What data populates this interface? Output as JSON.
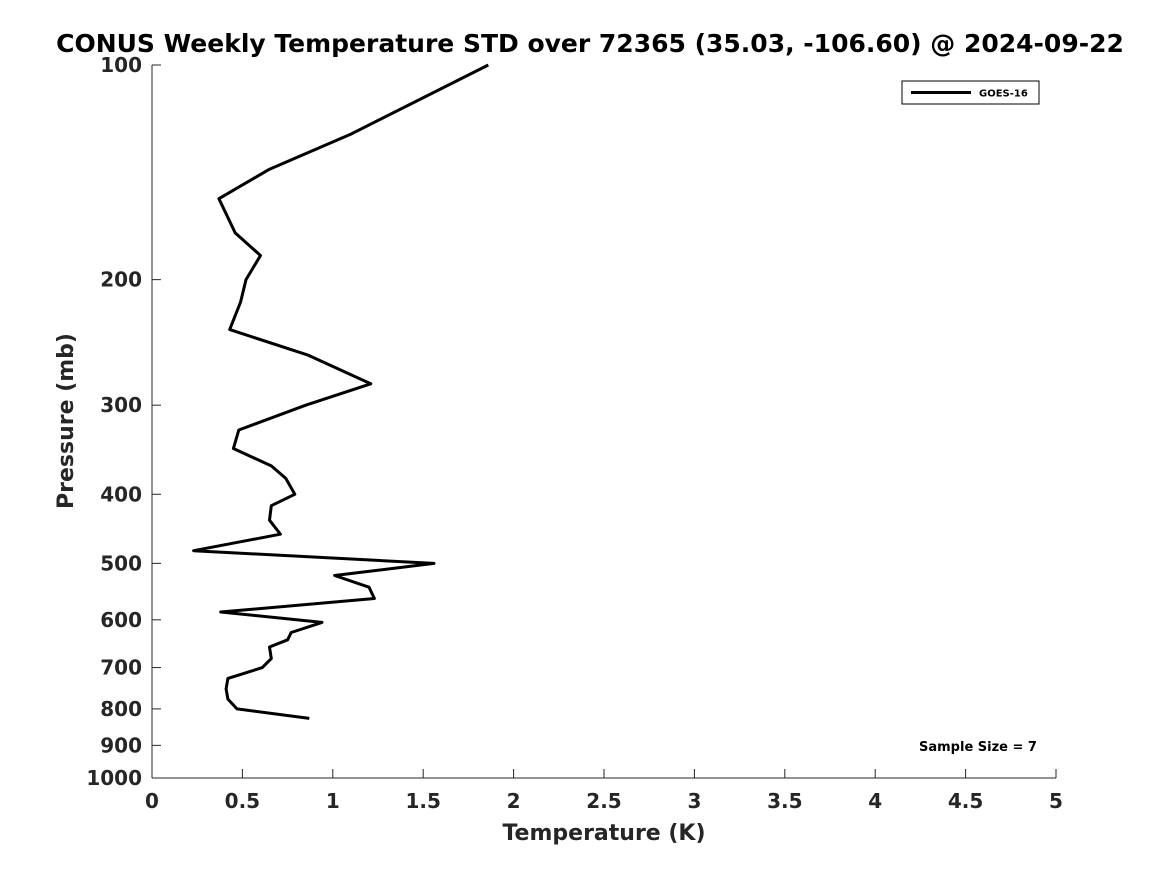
{
  "chart_data": {
    "type": "line",
    "title": "CONUS Weekly Temperature STD over 72365 (35.03, -106.60) @ 2024-09-22",
    "xlabel": "Temperature (K)",
    "ylabel": "Pressure (mb)",
    "xlim": [
      0,
      5
    ],
    "ylim": [
      1000,
      100
    ],
    "yscale": "log",
    "y_reversed": true,
    "xticks": [
      "0",
      "0.5",
      "1",
      "1.5",
      "2",
      "2.5",
      "3",
      "3.5",
      "4",
      "4.5",
      "5"
    ],
    "yticks": [
      "100",
      "200",
      "300",
      "400",
      "500",
      "600",
      "700",
      "800",
      "900",
      "1000"
    ],
    "grid": false,
    "legend_position": "top-right",
    "series": [
      {
        "name": "GOES-16",
        "color": "#000000",
        "points": [
          {
            "x": 1.86,
            "p": 100
          },
          {
            "x": 1.1,
            "p": 125
          },
          {
            "x": 0.65,
            "p": 140
          },
          {
            "x": 0.37,
            "p": 154
          },
          {
            "x": 0.46,
            "p": 172
          },
          {
            "x": 0.6,
            "p": 185
          },
          {
            "x": 0.52,
            "p": 200
          },
          {
            "x": 0.49,
            "p": 215
          },
          {
            "x": 0.43,
            "p": 235
          },
          {
            "x": 0.86,
            "p": 255
          },
          {
            "x": 1.21,
            "p": 280
          },
          {
            "x": 0.85,
            "p": 300
          },
          {
            "x": 0.48,
            "p": 325
          },
          {
            "x": 0.45,
            "p": 345
          },
          {
            "x": 0.66,
            "p": 365
          },
          {
            "x": 0.74,
            "p": 380
          },
          {
            "x": 0.79,
            "p": 400
          },
          {
            "x": 0.66,
            "p": 415
          },
          {
            "x": 0.65,
            "p": 435
          },
          {
            "x": 0.71,
            "p": 455
          },
          {
            "x": 0.23,
            "p": 480
          },
          {
            "x": 1.56,
            "p": 500
          },
          {
            "x": 1.01,
            "p": 520
          },
          {
            "x": 1.2,
            "p": 540
          },
          {
            "x": 1.23,
            "p": 560
          },
          {
            "x": 0.38,
            "p": 585
          },
          {
            "x": 0.94,
            "p": 605
          },
          {
            "x": 0.77,
            "p": 625
          },
          {
            "x": 0.75,
            "p": 640
          },
          {
            "x": 0.65,
            "p": 655
          },
          {
            "x": 0.66,
            "p": 680
          },
          {
            "x": 0.61,
            "p": 700
          },
          {
            "x": 0.42,
            "p": 725
          },
          {
            "x": 0.41,
            "p": 750
          },
          {
            "x": 0.42,
            "p": 775
          },
          {
            "x": 0.47,
            "p": 800
          },
          {
            "x": 0.87,
            "p": 825
          }
        ]
      }
    ],
    "annotations": [
      "Sample Size = 7"
    ]
  }
}
